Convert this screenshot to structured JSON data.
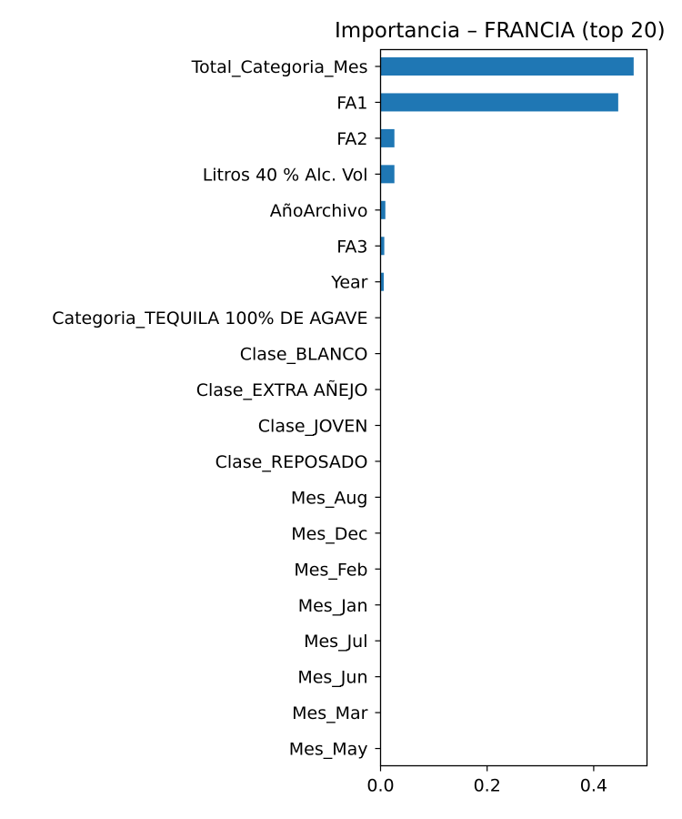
{
  "chart_data": {
    "type": "bar",
    "orientation": "horizontal",
    "title": "Importancia – FRANCIA (top 20)",
    "xlabel": "",
    "ylabel": "",
    "categories": [
      "Total_Categoria_Mes",
      "FA1",
      "FA2",
      "Litros 40 % Alc. Vol",
      "AñoArchivo",
      "FA3",
      "Year",
      "Categoria_TEQUILA 100% DE AGAVE",
      "Clase_BLANCO",
      "Clase_EXTRA AÑEJO",
      "Clase_JOVEN",
      "Clase_REPOSADO",
      "Mes_Aug",
      "Mes_Dec",
      "Mes_Feb",
      "Mes_Jan",
      "Mes_Jul",
      "Mes_Jun",
      "Mes_Mar",
      "Mes_May"
    ],
    "values": [
      0.475,
      0.446,
      0.026,
      0.026,
      0.009,
      0.007,
      0.006,
      0,
      0,
      0,
      0,
      0,
      0,
      0,
      0,
      0,
      0,
      0,
      0,
      0
    ],
    "xlim": [
      0,
      0.5
    ],
    "xticks": [
      "0.0",
      "0.2",
      "0.4"
    ],
    "xtick_values": [
      0,
      0.2,
      0.4
    ],
    "bar_color": "#1f77b4",
    "grid": false,
    "legend": "none"
  }
}
